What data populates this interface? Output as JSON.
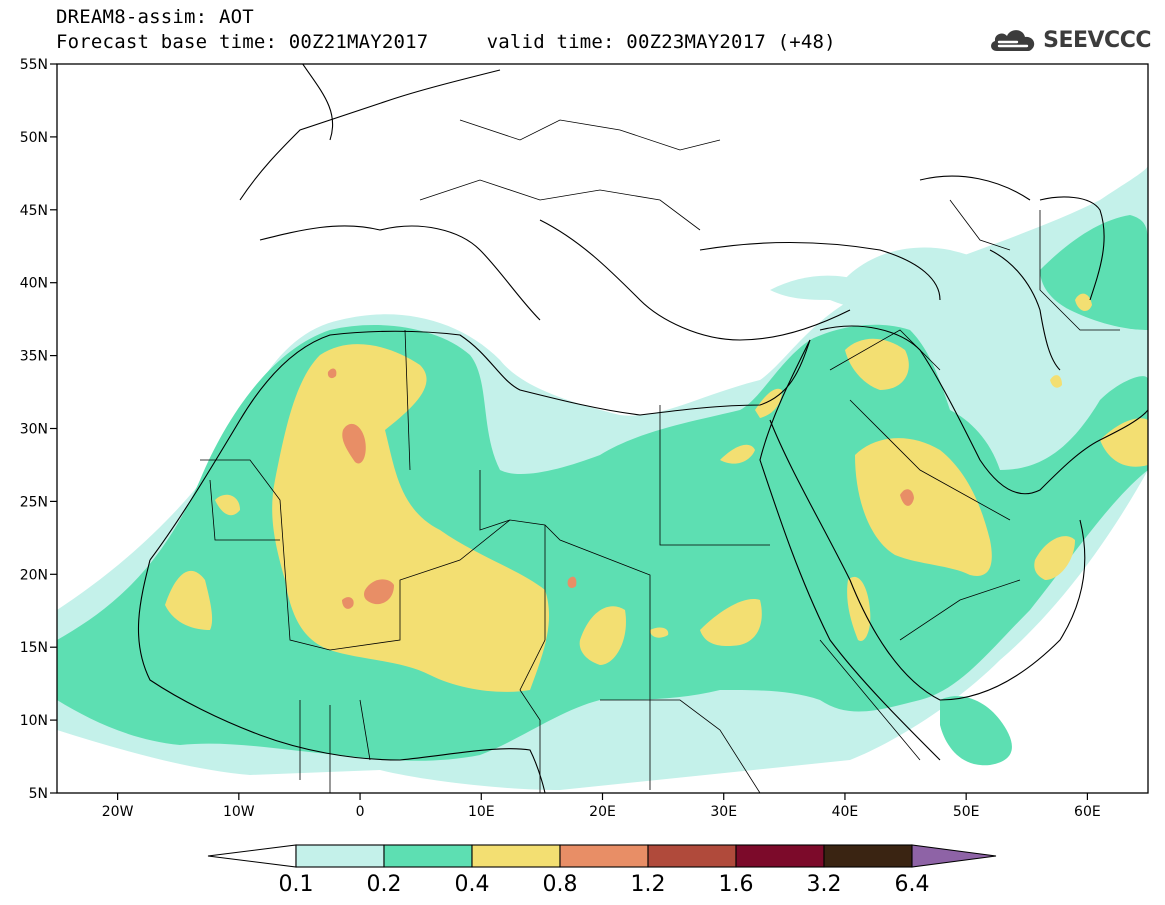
{
  "header": {
    "line1": "DREAM8-assim: AOT",
    "line2": "Forecast base time: 00Z21MAY2017     valid time: 00Z23MAY2017 (+48)",
    "logo_text": "SEEVCCC"
  },
  "map": {
    "lon_range": [
      -25,
      65
    ],
    "lat_range": [
      5,
      55
    ],
    "lat_ticks": [
      {
        "value": 55,
        "label": "55N"
      },
      {
        "value": 50,
        "label": "50N"
      },
      {
        "value": 45,
        "label": "45N"
      },
      {
        "value": 40,
        "label": "40N"
      },
      {
        "value": 35,
        "label": "35N"
      },
      {
        "value": 30,
        "label": "30N"
      },
      {
        "value": 25,
        "label": "25N"
      },
      {
        "value": 20,
        "label": "20N"
      },
      {
        "value": 15,
        "label": "15N"
      },
      {
        "value": 10,
        "label": "10N"
      },
      {
        "value": 5,
        "label": "5N"
      }
    ],
    "lon_ticks": [
      {
        "value": -20,
        "label": "20W"
      },
      {
        "value": -10,
        "label": "10W"
      },
      {
        "value": 0,
        "label": "0"
      },
      {
        "value": 10,
        "label": "10E"
      },
      {
        "value": 20,
        "label": "20E"
      },
      {
        "value": 30,
        "label": "30E"
      },
      {
        "value": 40,
        "label": "40E"
      },
      {
        "value": 50,
        "label": "50E"
      },
      {
        "value": 60,
        "label": "60E"
      }
    ]
  },
  "colorbar": {
    "levels": [
      "0.1",
      "0.2",
      "0.4",
      "0.8",
      "1.2",
      "1.6",
      "3.2",
      "6.4"
    ],
    "low_color": "#ffffff",
    "colors": [
      "#c4f1ea",
      "#5ddfb2",
      "#f3df72",
      "#e88e66",
      "#b04a3b",
      "#7c0a2a",
      "#3a2412"
    ],
    "high_color": "#8e63a6"
  }
}
